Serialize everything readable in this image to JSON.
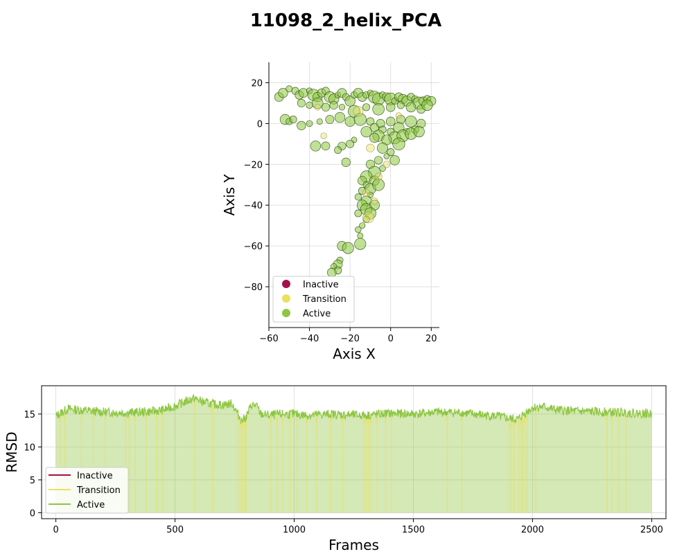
{
  "figure": {
    "title": "11098_2_helix_PCA"
  },
  "colors": {
    "inactive": "#a50f4a",
    "transition": "#ece05f",
    "active": "#8dc63f",
    "grid": "#d9d9d9"
  },
  "chart_data": [
    {
      "type": "scatter",
      "title": "",
      "xlabel": "Axis X",
      "ylabel": "Axis Y",
      "xlim": [
        -60,
        24
      ],
      "ylim": [
        -100,
        30
      ],
      "xticks": [
        -60,
        -40,
        -20,
        0,
        20
      ],
      "yticks": [
        -80,
        -60,
        -40,
        -20,
        0,
        20
      ],
      "xtick_labels": [
        "−60",
        "−40",
        "−20",
        "0",
        "20"
      ],
      "ytick_labels": [
        "−80",
        "−60",
        "−40",
        "−20",
        "0",
        "20"
      ],
      "grid": true,
      "legend": {
        "placement": "lower-left",
        "entries": [
          "Inactive",
          "Transition",
          "Active"
        ]
      },
      "series": [
        {
          "name": "Active",
          "points": [
            [
              -55,
              13
            ],
            [
              -53,
              15
            ],
            [
              -50,
              17
            ],
            [
              -47,
              16
            ],
            [
              -45,
              14
            ],
            [
              -43,
              15
            ],
            [
              -40,
              16
            ],
            [
              -38,
              14
            ],
            [
              -36,
              13
            ],
            [
              -34,
              15
            ],
            [
              -32,
              16
            ],
            [
              -30,
              13
            ],
            [
              -28,
              12
            ],
            [
              -26,
              14
            ],
            [
              -24,
              15
            ],
            [
              -22,
              13
            ],
            [
              -20,
              11
            ],
            [
              -18,
              14
            ],
            [
              -16,
              15
            ],
            [
              -14,
              13
            ],
            [
              -12,
              14
            ],
            [
              -10,
              15
            ],
            [
              -8,
              13
            ],
            [
              -6,
              12
            ],
            [
              -4,
              14
            ],
            [
              -2,
              13
            ],
            [
              0,
              12
            ],
            [
              2,
              11
            ],
            [
              4,
              13
            ],
            [
              6,
              12
            ],
            [
              8,
              11
            ],
            [
              10,
              13
            ],
            [
              12,
              12
            ],
            [
              14,
              10
            ],
            [
              16,
              11
            ],
            [
              18,
              12
            ],
            [
              20,
              11
            ],
            [
              -44,
              10
            ],
            [
              -40,
              9
            ],
            [
              -36,
              10
            ],
            [
              -32,
              8
            ],
            [
              -28,
              9
            ],
            [
              -24,
              8
            ],
            [
              -18,
              6
            ],
            [
              -12,
              8
            ],
            [
              -6,
              7
            ],
            [
              0,
              8
            ],
            [
              5,
              9
            ],
            [
              10,
              8
            ],
            [
              15,
              7
            ],
            [
              18,
              9
            ],
            [
              -52,
              2
            ],
            [
              -50,
              1
            ],
            [
              -48,
              2
            ],
            [
              -44,
              -1
            ],
            [
              -40,
              0
            ],
            [
              -35,
              1
            ],
            [
              -30,
              2
            ],
            [
              -25,
              3
            ],
            [
              -20,
              1
            ],
            [
              -15,
              2
            ],
            [
              -10,
              1
            ],
            [
              -5,
              0
            ],
            [
              0,
              1
            ],
            [
              5,
              2
            ],
            [
              10,
              1
            ],
            [
              15,
              0
            ],
            [
              -8,
              -2
            ],
            [
              -4,
              -3
            ],
            [
              0,
              -4
            ],
            [
              4,
              -2
            ],
            [
              8,
              -4
            ],
            [
              12,
              -3
            ],
            [
              -12,
              -4
            ],
            [
              -6,
              -6
            ],
            [
              2,
              -7
            ],
            [
              6,
              -6
            ],
            [
              10,
              -5
            ],
            [
              14,
              -4
            ],
            [
              -2,
              -8
            ],
            [
              -8,
              -7
            ],
            [
              -18,
              -8
            ],
            [
              -20,
              -10
            ],
            [
              -24,
              -11
            ],
            [
              -26,
              -13
            ],
            [
              -32,
              -11
            ],
            [
              -37,
              -11
            ],
            [
              -4,
              -12
            ],
            [
              0,
              -14
            ],
            [
              4,
              -10
            ],
            [
              -2,
              -16
            ],
            [
              -6,
              -18
            ],
            [
              2,
              -18
            ],
            [
              -10,
              -20
            ],
            [
              -4,
              -22
            ],
            [
              -8,
              -24
            ],
            [
              -22,
              -19
            ],
            [
              -12,
              -26
            ],
            [
              -8,
              -28
            ],
            [
              -14,
              -28
            ],
            [
              -12,
              -30
            ],
            [
              -10,
              -32
            ],
            [
              -6,
              -30
            ],
            [
              -14,
              -33
            ],
            [
              -10,
              -35
            ],
            [
              -16,
              -36
            ],
            [
              -12,
              -38
            ],
            [
              -14,
              -40
            ],
            [
              -8,
              -40
            ],
            [
              -12,
              -42
            ],
            [
              -16,
              -44
            ],
            [
              -10,
              -44
            ],
            [
              -12,
              -47
            ],
            [
              -14,
              -50
            ],
            [
              -16,
              -52
            ],
            [
              -15,
              -55
            ],
            [
              -24,
              -60
            ],
            [
              -21,
              -61
            ],
            [
              -15,
              -59
            ],
            [
              -25,
              -67
            ],
            [
              -26,
              -69
            ],
            [
              -28,
              -70
            ],
            [
              -26,
              -72
            ],
            [
              -29,
              -73
            ]
          ]
        },
        {
          "name": "Transition",
          "points": [
            [
              -33,
              -6
            ],
            [
              -10,
              -12
            ],
            [
              -6,
              -26
            ],
            [
              -12,
              -34
            ],
            [
              -11,
              -46
            ],
            [
              -8,
              -38
            ],
            [
              -2,
              -20
            ],
            [
              4,
              4
            ],
            [
              -16,
              6
            ],
            [
              -36,
              8
            ]
          ]
        }
      ]
    },
    {
      "type": "line",
      "title": "",
      "xlabel": "Frames",
      "ylabel": "RMSD",
      "xlim": [
        -60,
        2560
      ],
      "ylim": [
        -0.9,
        19.3
      ],
      "xticks": [
        0,
        500,
        1000,
        1500,
        2000,
        2500
      ],
      "yticks": [
        0,
        5,
        10,
        15
      ],
      "xtick_labels": [
        "0",
        "500",
        "1000",
        "1500",
        "2000",
        "2500"
      ],
      "ytick_labels": [
        "0",
        "5",
        "10",
        "15"
      ],
      "grid": true,
      "legend": {
        "placement": "lower-left",
        "entries": [
          "Inactive",
          "Transition",
          "Active"
        ]
      },
      "series": [
        {
          "name": "Active",
          "profile_frames": [
            0,
            50,
            100,
            200,
            300,
            400,
            450,
            500,
            550,
            580,
            620,
            660,
            700,
            740,
            760,
            780,
            800,
            820,
            840,
            860,
            900,
            950,
            1000,
            1050,
            1100,
            1150,
            1200,
            1300,
            1400,
            1500,
            1600,
            1700,
            1800,
            1850,
            1900,
            1940,
            1960,
            2000,
            2050,
            2100,
            2200,
            2300,
            2400,
            2500
          ],
          "profile_rmsd": [
            14.7,
            15.8,
            15.6,
            15.3,
            15.2,
            15.4,
            15.6,
            16.2,
            17.0,
            17.4,
            16.8,
            16.5,
            16.4,
            16.6,
            15.2,
            14.0,
            14.6,
            16.4,
            16.3,
            15.0,
            14.8,
            15.0,
            15.0,
            14.8,
            14.9,
            15.0,
            14.9,
            14.8,
            15.1,
            15.0,
            15.3,
            15.2,
            14.8,
            14.7,
            14.3,
            14.2,
            14.9,
            16.0,
            16.1,
            15.6,
            15.4,
            15.3,
            15.2,
            15.0
          ]
        },
        {
          "name": "Transition",
          "frames": [
            15,
            35,
            105,
            155,
            205,
            290,
            305,
            330,
            375,
            420,
            445,
            580,
            655,
            760,
            770,
            780,
            790,
            795,
            900,
            925,
            950,
            980,
            1010,
            1050,
            1090,
            1150,
            1200,
            1290,
            1300,
            1310,
            1320,
            1345,
            1380,
            1405,
            1640,
            1700,
            1900,
            1910,
            1920,
            1940,
            1950,
            1955,
            1965,
            1975,
            2010,
            2310,
            2330,
            2360,
            2390
          ]
        }
      ]
    }
  ]
}
